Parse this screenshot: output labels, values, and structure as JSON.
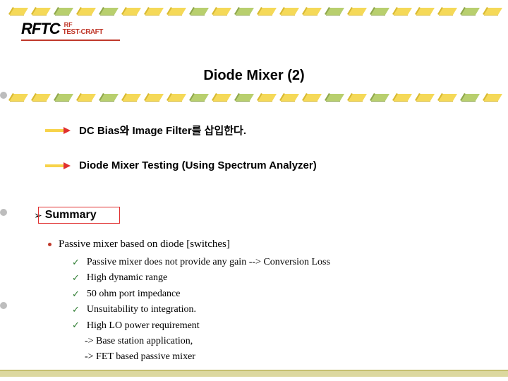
{
  "logo": {
    "main": "RFTC",
    "rf": "RF",
    "sub": "TEST-CRAFT"
  },
  "title": "Diode Mixer (2)",
  "points": [
    {
      "text": "DC Bias와 Image Filter를 삽입한다."
    },
    {
      "text": "Diode Mixer Testing (Using Spectrum Analyzer)"
    }
  ],
  "summary": {
    "marker": "➢",
    "label": "Summary"
  },
  "content": {
    "head": "Passive mixer based on diode [switches]",
    "items": [
      "Passive mixer does not provide any gain  --> Conversion Loss",
      "High dynamic range",
      "50 ohm port impedance",
      "Unsuitability to integration.",
      "High LO power requirement"
    ],
    "subs": [
      "-> Base station application,",
      "-> FET based passive mixer"
    ]
  },
  "brick_colors": {
    "y1": "#f5d958",
    "y2": "#d9ba2f",
    "g1": "#b8cf6e",
    "g2": "#8fa84a"
  },
  "dot_color": "#bdbdbd",
  "arrow_colors": {
    "body": "#f7d34a",
    "head": "#e03030"
  },
  "brick_rows_y": [
    6,
    128,
    516
  ]
}
